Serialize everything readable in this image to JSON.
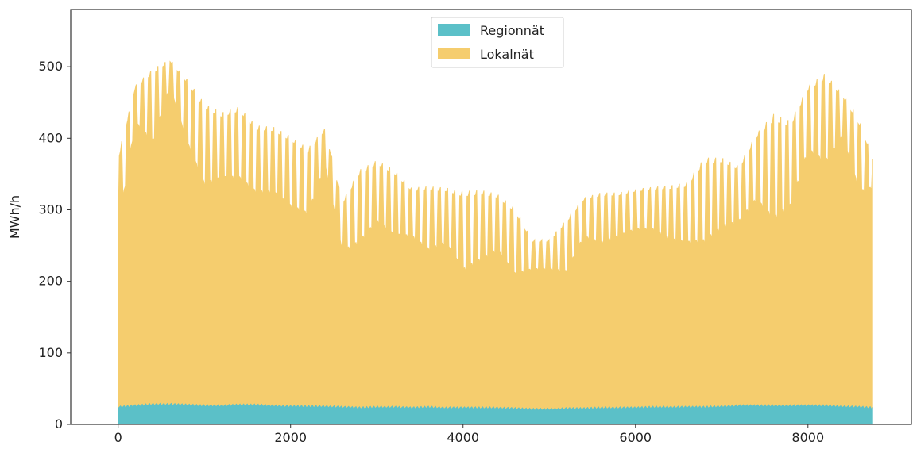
{
  "chart_data": {
    "type": "area",
    "stacked": true,
    "title": "",
    "xlabel": "",
    "ylabel": "MWh/h",
    "xlim": [
      -550,
      9200
    ],
    "ylim": [
      0,
      580
    ],
    "xticks": [
      0,
      2000,
      4000,
      6000,
      8000
    ],
    "yticks": [
      0,
      100,
      200,
      300,
      400,
      500
    ],
    "grid": false,
    "legend": {
      "placement": "top-center"
    },
    "series": [
      {
        "name": "Regionnät",
        "color": "#5bc0c8",
        "x": [
          0,
          200,
          400,
          600,
          800,
          1000,
          1200,
          1400,
          1600,
          1800,
          2000,
          2200,
          2400,
          2600,
          2800,
          3000,
          3200,
          3400,
          3600,
          3800,
          4000,
          4200,
          4400,
          4600,
          4800,
          5000,
          5200,
          5400,
          5600,
          5800,
          6000,
          6200,
          6400,
          6600,
          6800,
          7000,
          7200,
          7400,
          7600,
          7800,
          8000,
          8200,
          8400,
          8600,
          8760
        ],
        "values": [
          24,
          26,
          28,
          28,
          27,
          26,
          26,
          27,
          27,
          26,
          25,
          25,
          25,
          24,
          23,
          24,
          24,
          23,
          24,
          23,
          23,
          23,
          23,
          22,
          21,
          21,
          22,
          22,
          23,
          23,
          23,
          24,
          24,
          24,
          24,
          25,
          26,
          26,
          26,
          26,
          26,
          26,
          25,
          24,
          23
        ]
      },
      {
        "name": "Lokalnät",
        "color": "#f5cd6e",
        "x": [
          0,
          200,
          400,
          600,
          800,
          1000,
          1200,
          1400,
          1600,
          1800,
          2000,
          2200,
          2400,
          2600,
          2800,
          3000,
          3200,
          3400,
          3600,
          3800,
          4000,
          4200,
          4400,
          4600,
          4800,
          5000,
          5200,
          5400,
          5600,
          5800,
          6000,
          6200,
          6400,
          6600,
          6800,
          7000,
          7200,
          7400,
          7600,
          7800,
          8000,
          8200,
          8400,
          8600,
          8760
        ],
        "peak_values": [
          375,
          474,
          497,
          510,
          483,
          449,
          436,
          444,
          418,
          416,
          403,
          386,
          414,
          312,
          356,
          369,
          356,
          331,
          333,
          331,
          326,
          328,
          322,
          303,
          258,
          258,
          287,
          317,
          324,
          324,
          329,
          332,
          334,
          338,
          373,
          373,
          361,
          406,
          434,
          424,
          473,
          491,
          462,
          424,
          370
        ],
        "trough_values": [
          270,
          420,
          390,
          470,
          390,
          330,
          340,
          340,
          320,
          320,
          300,
          290,
          360,
          238,
          250,
          280,
          260,
          260,
          240,
          250,
          210,
          225,
          240,
          205,
          215,
          215,
          210,
          260,
          250,
          260,
          270,
          270,
          255,
          250,
          250,
          270,
          280,
          310,
          280,
          300,
          380,
          360,
          400,
          320,
          330
        ]
      }
    ]
  }
}
